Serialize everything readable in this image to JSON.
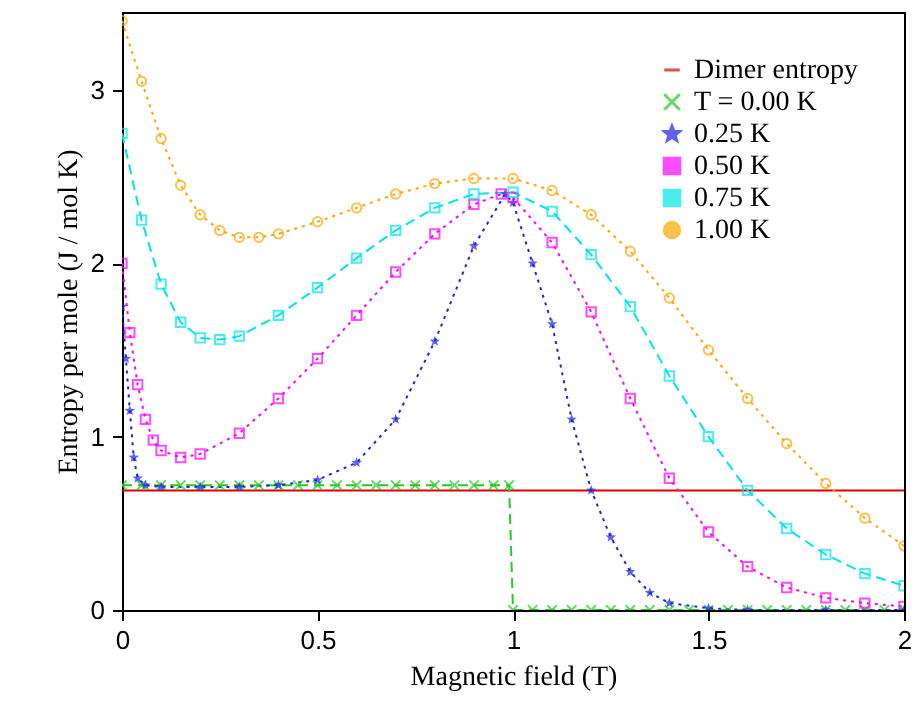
{
  "chart_data": {
    "type": "line",
    "xlabel": "Magnetic field (T)",
    "ylabel": "Entropy per mole (J / mol K)",
    "xlim": [
      0,
      2
    ],
    "ylim": [
      0,
      3.45
    ],
    "xticks": [
      0,
      0.5,
      1,
      1.5,
      2
    ],
    "yticks": [
      0,
      1,
      2,
      3
    ],
    "grid": false,
    "legend": "top right",
    "series": [
      {
        "name": "Dimer entropy",
        "color": "#dd0000",
        "line_style": "solid",
        "marker": "none",
        "x": [
          0,
          2
        ],
        "values": [
          0.69,
          0.69
        ]
      },
      {
        "name": "T = 0.00 K",
        "color": "#22cc22",
        "line_style": "dashed",
        "marker": "cross",
        "x": [
          0,
          0.05,
          0.1,
          0.15,
          0.2,
          0.25,
          0.3,
          0.35,
          0.4,
          0.45,
          0.5,
          0.55,
          0.6,
          0.65,
          0.7,
          0.75,
          0.8,
          0.85,
          0.9,
          0.95,
          0.99,
          1.0,
          1.05,
          1.1,
          1.15,
          1.2,
          1.25,
          1.3,
          1.35,
          1.4,
          1.45,
          1.5,
          1.55,
          1.6,
          1.65,
          1.7,
          1.75,
          1.8,
          1.85,
          1.9,
          1.95,
          2.0
        ],
        "values": [
          0.72,
          0.72,
          0.72,
          0.72,
          0.72,
          0.72,
          0.72,
          0.72,
          0.72,
          0.72,
          0.72,
          0.72,
          0.72,
          0.72,
          0.72,
          0.72,
          0.72,
          0.72,
          0.72,
          0.72,
          0.72,
          0,
          0,
          0,
          0,
          0,
          0,
          0,
          0,
          0,
          0,
          0,
          0,
          0,
          0,
          0,
          0,
          0,
          0,
          0,
          0,
          0
        ]
      },
      {
        "name": "0.25 K",
        "color": "#2020e0",
        "line_style": "dotted",
        "marker": "star",
        "x": [
          0,
          0.01,
          0.02,
          0.03,
          0.04,
          0.06,
          0.1,
          0.2,
          0.3,
          0.4,
          0.5,
          0.6,
          0.7,
          0.8,
          0.9,
          0.98,
          1.0,
          1.05,
          1.1,
          1.15,
          1.2,
          1.25,
          1.3,
          1.35,
          1.4,
          1.5,
          1.6,
          1.8,
          2.0
        ],
        "values": [
          1.75,
          1.45,
          1.15,
          0.88,
          0.76,
          0.72,
          0.71,
          0.71,
          0.71,
          0.72,
          0.75,
          0.85,
          1.1,
          1.55,
          2.1,
          2.4,
          2.35,
          2.0,
          1.65,
          1.1,
          0.69,
          0.42,
          0.22,
          0.1,
          0.04,
          0.01,
          0,
          0,
          0
        ]
      },
      {
        "name": "0.50 K",
        "color": "#ff00ff",
        "line_style": "dotted",
        "marker": "square",
        "x": [
          0,
          0.02,
          0.04,
          0.06,
          0.08,
          0.1,
          0.15,
          0.2,
          0.3,
          0.4,
          0.5,
          0.6,
          0.7,
          0.8,
          0.9,
          0.97,
          1.0,
          1.1,
          1.2,
          1.3,
          1.4,
          1.5,
          1.6,
          1.7,
          1.8,
          1.9,
          2.0
        ],
        "values": [
          2.0,
          1.6,
          1.3,
          1.1,
          0.98,
          0.92,
          0.88,
          0.9,
          1.02,
          1.22,
          1.45,
          1.7,
          1.95,
          2.17,
          2.34,
          2.4,
          2.38,
          2.12,
          1.72,
          1.22,
          0.76,
          0.45,
          0.25,
          0.13,
          0.07,
          0.04,
          0.02
        ]
      },
      {
        "name": "0.75 K",
        "color": "#00e5e5",
        "line_style": "dashed",
        "marker": "square",
        "x": [
          0,
          0.05,
          0.1,
          0.15,
          0.2,
          0.25,
          0.3,
          0.4,
          0.5,
          0.6,
          0.7,
          0.8,
          0.9,
          1.0,
          1.1,
          1.2,
          1.3,
          1.4,
          1.5,
          1.6,
          1.7,
          1.8,
          1.9,
          2.0
        ],
        "values": [
          2.75,
          2.25,
          1.88,
          1.66,
          1.57,
          1.56,
          1.58,
          1.7,
          1.86,
          2.03,
          2.19,
          2.32,
          2.4,
          2.41,
          2.3,
          2.05,
          1.75,
          1.35,
          1.0,
          0.69,
          0.47,
          0.32,
          0.21,
          0.14
        ]
      },
      {
        "name": "1.00 K",
        "color": "#ffa500",
        "line_style": "dotted",
        "marker": "circle",
        "x": [
          0,
          0.05,
          0.1,
          0.15,
          0.2,
          0.25,
          0.3,
          0.35,
          0.4,
          0.5,
          0.6,
          0.7,
          0.8,
          0.9,
          1.0,
          1.1,
          1.2,
          1.3,
          1.4,
          1.5,
          1.6,
          1.7,
          1.8,
          1.9,
          2.0
        ],
        "values": [
          3.4,
          3.05,
          2.72,
          2.45,
          2.28,
          2.19,
          2.15,
          2.15,
          2.17,
          2.24,
          2.32,
          2.4,
          2.46,
          2.49,
          2.49,
          2.42,
          2.28,
          2.07,
          1.8,
          1.5,
          1.22,
          0.96,
          0.73,
          0.53,
          0.37
        ]
      }
    ]
  }
}
